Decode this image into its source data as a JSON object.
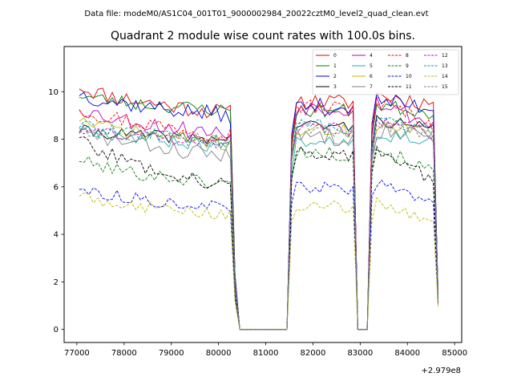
{
  "chart_data": {
    "type": "line",
    "suptitle": "Data file: modeM0/AS1C04_001T01_9000002984_20022cztM0_level2_quad_clean.evt",
    "title": "Quadrant 2 module wise count rates with 100.0s bins.",
    "xlabel": "",
    "ylabel": "",
    "x_offset_label": "+2.979e8",
    "xlim": [
      76730,
      85150
    ],
    "ylim": [
      -0.55,
      11.9
    ],
    "x_ticks": [
      77000,
      78000,
      79000,
      80000,
      81000,
      82000,
      83000,
      84000,
      85000
    ],
    "x_tick_labels": [
      "77000",
      "78000",
      "79000",
      "80000",
      "81000",
      "82000",
      "83000",
      "84000",
      "85000"
    ],
    "y_ticks": [
      0,
      2,
      4,
      6,
      8,
      10
    ],
    "y_tick_labels": [
      "0",
      "2",
      "4",
      "6",
      "8",
      "10"
    ],
    "legend_location": "upper-right",
    "time_segments": [
      {
        "start": 77050,
        "end": 80250,
        "step": 100
      },
      {
        "start": 81550,
        "end": 82750,
        "step": 100
      },
      {
        "start": 83250,
        "end": 84550,
        "step": 100
      }
    ],
    "transitions": [
      {
        "x": [
          80250,
          80350,
          80450,
          81450,
          81550
        ],
        "frac": [
          1.0,
          0.25,
          0.0,
          0.0,
          0.5
        ]
      },
      {
        "x": [
          82750,
          82850,
          82950,
          83150,
          83250
        ],
        "frac": [
          1.0,
          1.0,
          0.0,
          0.0,
          0.95
        ]
      },
      {
        "x": [
          84550,
          84650
        ],
        "frac": [
          1.0,
          0.12
        ]
      }
    ],
    "series": [
      {
        "name": "0",
        "color": "#e00000",
        "dash": "solid",
        "seed": 11,
        "levels": [
          10.3,
          9.1,
          9.6,
          9.5
        ],
        "noise": 0.35
      },
      {
        "name": "1",
        "color": "#008000",
        "dash": "solid",
        "seed": 23,
        "levels": [
          9.9,
          9.2,
          9.2,
          9.1
        ],
        "noise": 0.3
      },
      {
        "name": "2",
        "color": "#0000dd",
        "dash": "solid",
        "seed": 37,
        "levels": [
          10.0,
          9.0,
          9.4,
          9.3
        ],
        "noise": 0.35
      },
      {
        "name": "3",
        "color": "#000000",
        "dash": "solid",
        "seed": 41,
        "levels": [
          8.4,
          8.0,
          8.6,
          8.4
        ],
        "noise": 0.25
      },
      {
        "name": "4",
        "color": "#bb00bb",
        "dash": "solid",
        "seed": 53,
        "levels": [
          9.4,
          8.2,
          9.4,
          8.6
        ],
        "noise": 0.35
      },
      {
        "name": "5",
        "color": "#20b2aa",
        "dash": "solid",
        "seed": 67,
        "levels": [
          8.6,
          7.7,
          8.0,
          8.0
        ],
        "noise": 0.3
      },
      {
        "name": "6",
        "color": "#b8b800",
        "dash": "solid",
        "seed": 71,
        "levels": [
          8.9,
          7.8,
          8.4,
          8.2
        ],
        "noise": 0.3
      },
      {
        "name": "7",
        "color": "#808080",
        "dash": "solid",
        "seed": 83,
        "levels": [
          8.4,
          7.3,
          8.2,
          8.2
        ],
        "noise": 0.35
      },
      {
        "name": "8",
        "color": "#ff0000",
        "dash": "dashed",
        "seed": 97,
        "levels": [
          9.4,
          8.2,
          9.4,
          8.6
        ],
        "noise": 0.35
      },
      {
        "name": "9",
        "color": "#008000",
        "dash": "dashed",
        "seed": 101,
        "levels": [
          7.2,
          6.1,
          7.5,
          6.6
        ],
        "noise": 0.3
      },
      {
        "name": "10",
        "color": "#0000ff",
        "dash": "dashed",
        "seed": 113,
        "levels": [
          6.0,
          5.1,
          6.0,
          5.4
        ],
        "noise": 0.25
      },
      {
        "name": "11",
        "color": "#000000",
        "dash": "dashed",
        "seed": 127,
        "levels": [
          8.2,
          6.0,
          7.5,
          6.2
        ],
        "noise": 0.3
      },
      {
        "name": "12",
        "color": "#cc00cc",
        "dash": "dashed",
        "seed": 131,
        "levels": [
          8.5,
          7.9,
          8.5,
          8.3
        ],
        "noise": 0.3
      },
      {
        "name": "13",
        "color": "#00a0a0",
        "dash": "dashed",
        "seed": 139,
        "levels": [
          8.6,
          7.9,
          8.6,
          8.3
        ],
        "noise": 0.3
      },
      {
        "name": "14",
        "color": "#bbbb00",
        "dash": "dashed",
        "seed": 149,
        "levels": [
          5.7,
          4.8,
          5.2,
          4.5
        ],
        "noise": 0.25
      },
      {
        "name": "15",
        "color": "#808080",
        "dash": "dashed",
        "seed": 151,
        "levels": [
          8.4,
          7.9,
          8.4,
          8.2
        ],
        "noise": 0.3
      }
    ]
  }
}
